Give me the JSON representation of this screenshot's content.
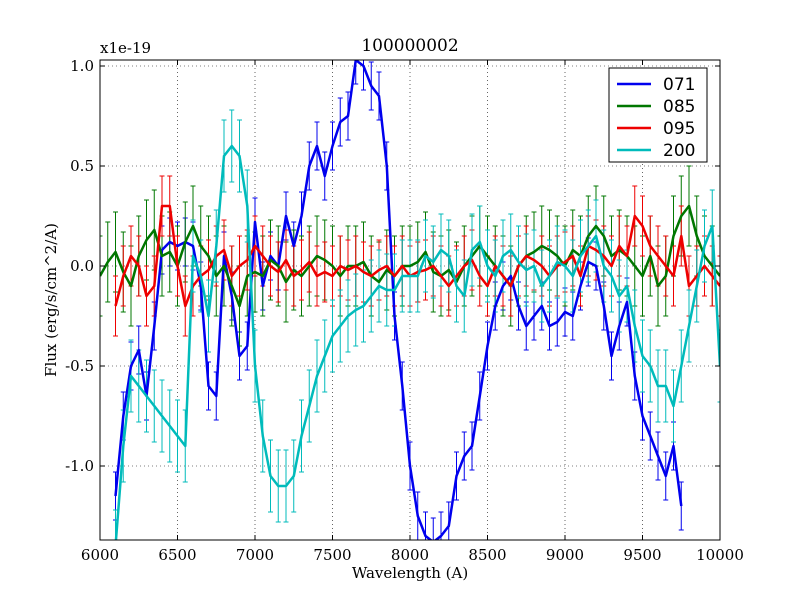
{
  "chart_data": {
    "type": "line",
    "title": "100000002",
    "xlabel": "Wavelength (A)",
    "ylabel": "Flux (erg/s/cm^2/A)",
    "y_offset_text": "x1e-19",
    "xlim": [
      6000,
      10000
    ],
    "ylim": [
      -1.37,
      1.03
    ],
    "xticks": [
      6000,
      6500,
      7000,
      7500,
      8000,
      8500,
      9000,
      9500,
      10000
    ],
    "xtick_labels": [
      "6000",
      "6500",
      "7000",
      "7500",
      "8000",
      "8500",
      "9000",
      "9500",
      "10000"
    ],
    "yticks": [
      -1.0,
      -0.5,
      0.0,
      0.5,
      1.0
    ],
    "ytick_labels": [
      "-1.0",
      "-0.5",
      "0.0",
      "0.5",
      "1.0"
    ],
    "grid": true,
    "legend_position": "top-right",
    "series": [
      {
        "name": "071",
        "color": "#0000ee",
        "err": 0.12,
        "x": [
          6100,
          6150,
          6200,
          6250,
          6300,
          6350,
          6400,
          6450,
          6500,
          6550,
          6600,
          6650,
          6700,
          6750,
          6800,
          6850,
          6900,
          6950,
          7000,
          7050,
          7100,
          7150,
          7200,
          7250,
          7300,
          7350,
          7400,
          7450,
          7500,
          7550,
          7600,
          7650,
          7700,
          7750,
          7800,
          7850,
          7900,
          7950,
          8000,
          8050,
          8100,
          8150,
          8200,
          8250,
          8300,
          8350,
          8400,
          8450,
          8500,
          8550,
          8600,
          8650,
          8700,
          8750,
          8800,
          8850,
          8900,
          8950,
          9000,
          9050,
          9100,
          9150,
          9200,
          9250,
          9300,
          9350,
          9400,
          9450,
          9500,
          9550,
          9600,
          9650,
          9700,
          9750
        ],
        "y": [
          -1.15,
          -0.75,
          -0.5,
          -0.42,
          -0.65,
          -0.3,
          0.08,
          0.12,
          0.1,
          0.12,
          0.1,
          -0.1,
          -0.6,
          -0.65,
          0.05,
          -0.15,
          -0.45,
          -0.4,
          0.22,
          -0.1,
          0.05,
          0.0,
          0.25,
          0.1,
          0.25,
          0.5,
          0.6,
          0.45,
          0.6,
          0.72,
          0.75,
          1.03,
          1.0,
          0.9,
          0.85,
          0.5,
          -0.25,
          -0.6,
          -1.0,
          -1.25,
          -1.35,
          -1.38,
          -1.35,
          -1.3,
          -1.05,
          -0.95,
          -0.9,
          -0.65,
          -0.4,
          -0.2,
          -0.1,
          -0.05,
          -0.2,
          -0.3,
          -0.25,
          -0.2,
          -0.3,
          -0.28,
          -0.23,
          -0.25,
          -0.1,
          0.02,
          0.0,
          -0.2,
          -0.45,
          -0.3,
          -0.18,
          -0.55,
          -0.75,
          -0.85,
          -0.95,
          -1.05,
          -0.9,
          -1.2
        ]
      },
      {
        "name": "085",
        "color": "#007700",
        "err": 0.2,
        "x": [
          6000,
          6050,
          6100,
          6150,
          6200,
          6250,
          6300,
          6350,
          6400,
          6450,
          6500,
          6550,
          6600,
          6650,
          6700,
          6750,
          6800,
          6850,
          6900,
          6950,
          7000,
          7050,
          7100,
          7150,
          7200,
          7250,
          7300,
          7350,
          7400,
          7450,
          7500,
          7550,
          7600,
          7650,
          7700,
          7750,
          7800,
          7850,
          7900,
          7950,
          8000,
          8050,
          8100,
          8150,
          8200,
          8250,
          8300,
          8350,
          8400,
          8450,
          8500,
          8550,
          8600,
          8650,
          8700,
          8750,
          8800,
          8850,
          8900,
          8950,
          9000,
          9050,
          9100,
          9150,
          9200,
          9250,
          9300,
          9350,
          9400,
          9450,
          9500,
          9550,
          9600,
          9650,
          9700,
          9750,
          9800,
          9850,
          9900,
          9950,
          10000
        ],
        "y": [
          -0.05,
          0.02,
          0.07,
          -0.03,
          -0.1,
          0.05,
          0.13,
          0.18,
          0.05,
          0.07,
          0.0,
          0.12,
          0.2,
          0.1,
          0.05,
          -0.05,
          0.0,
          -0.1,
          -0.2,
          -0.05,
          -0.03,
          -0.05,
          0.03,
          0.0,
          -0.08,
          -0.02,
          -0.05,
          0.0,
          0.05,
          0.03,
          0.0,
          -0.05,
          0.0,
          0.0,
          0.02,
          -0.05,
          -0.08,
          -0.02,
          -0.05,
          0.0,
          0.0,
          0.02,
          0.07,
          -0.03,
          -0.05,
          -0.02,
          -0.08,
          0.0,
          0.05,
          0.1,
          0.05,
          0.0,
          -0.05,
          -0.1,
          0.0,
          0.05,
          0.07,
          0.1,
          0.08,
          0.05,
          0.0,
          0.08,
          0.05,
          0.15,
          0.2,
          0.15,
          0.05,
          0.08,
          0.05,
          0.0,
          -0.05,
          0.05,
          -0.1,
          -0.05,
          0.15,
          0.25,
          0.3,
          0.15,
          0.05,
          0.0,
          -0.05
        ]
      },
      {
        "name": "095",
        "color": "#ee0000",
        "err": 0.15,
        "x": [
          6100,
          6150,
          6200,
          6250,
          6300,
          6350,
          6400,
          6450,
          6500,
          6550,
          6600,
          6650,
          6700,
          6750,
          6800,
          6850,
          6900,
          6950,
          7000,
          7050,
          7100,
          7150,
          7200,
          7250,
          7300,
          7350,
          7400,
          7450,
          7500,
          7550,
          7600,
          7650,
          7700,
          7750,
          7800,
          7850,
          7900,
          7950,
          8000,
          8050,
          8100,
          8150,
          8200,
          8250,
          8300,
          8350,
          8400,
          8450,
          8500,
          8550,
          8600,
          8650,
          8700,
          8750,
          8800,
          8850,
          8900,
          8950,
          9000,
          9050,
          9100,
          9150,
          9200,
          9250,
          9300,
          9350,
          9400,
          9450,
          9500,
          9550,
          9600,
          9650,
          9700,
          9750,
          9800,
          9850,
          9900,
          9950,
          10000
        ],
        "y": [
          -0.2,
          -0.05,
          0.05,
          0.0,
          -0.15,
          -0.1,
          0.3,
          0.3,
          0.0,
          -0.2,
          -0.1,
          -0.05,
          -0.02,
          0.05,
          0.08,
          -0.05,
          0.0,
          0.03,
          0.1,
          0.05,
          0.0,
          -0.03,
          0.03,
          -0.05,
          -0.02,
          0.02,
          -0.05,
          -0.03,
          -0.05,
          0.0,
          -0.02,
          0.0,
          -0.03,
          -0.05,
          -0.02,
          0.0,
          -0.05,
          0.0,
          -0.05,
          -0.03,
          -0.02,
          0.0,
          -0.05,
          -0.1,
          -0.05,
          0.0,
          0.03,
          -0.05,
          -0.1,
          0.0,
          -0.05,
          -0.1,
          0.0,
          0.05,
          0.03,
          0.0,
          -0.05,
          0.0,
          0.02,
          0.05,
          -0.05,
          0.1,
          0.08,
          0.05,
          0.0,
          0.1,
          0.05,
          0.25,
          0.2,
          0.1,
          0.05,
          0.0,
          -0.05,
          0.15,
          -0.1,
          -0.05,
          0.0,
          -0.05,
          -0.1
        ]
      },
      {
        "name": "200",
        "color": "#00bbbb",
        "err": 0.18,
        "x": [
          6100,
          6150,
          6200,
          6250,
          6300,
          6350,
          6400,
          6450,
          6500,
          6550,
          6600,
          6650,
          6700,
          6750,
          6800,
          6850,
          6900,
          6950,
          7000,
          7050,
          7100,
          7150,
          7200,
          7250,
          7300,
          7350,
          7400,
          7450,
          7500,
          7550,
          7600,
          7650,
          7700,
          7750,
          7800,
          7850,
          7900,
          7950,
          8000,
          8050,
          8100,
          8150,
          8200,
          8250,
          8300,
          8350,
          8400,
          8450,
          8500,
          8550,
          8600,
          8650,
          8700,
          8750,
          8800,
          8850,
          8900,
          8950,
          9000,
          9050,
          9100,
          9150,
          9200,
          9250,
          9300,
          9350,
          9400,
          9450,
          9500,
          9550,
          9600,
          9650,
          9700,
          9750,
          9800,
          9850,
          9900,
          9950,
          10000
        ],
        "y": [
          -1.4,
          -0.9,
          -0.55,
          -0.6,
          -0.65,
          -0.7,
          -0.75,
          -0.8,
          -0.85,
          -0.9,
          0.05,
          -0.05,
          -0.25,
          0.1,
          0.55,
          0.6,
          0.55,
          0.3,
          -0.5,
          -0.85,
          -1.05,
          -1.1,
          -1.1,
          -1.05,
          -0.85,
          -0.7,
          -0.55,
          -0.45,
          -0.35,
          -0.3,
          -0.25,
          -0.22,
          -0.2,
          -0.15,
          -0.1,
          -0.12,
          -0.12,
          -0.05,
          -0.05,
          -0.05,
          0.05,
          0.02,
          0.08,
          0.05,
          -0.1,
          -0.15,
          0.08,
          0.12,
          0.0,
          -0.05,
          0.05,
          0.08,
          0.02,
          -0.02,
          0.0,
          -0.1,
          -0.05,
          0.02,
          0.0,
          -0.05,
          0.05,
          0.1,
          0.15,
          0.0,
          -0.05,
          -0.15,
          -0.1,
          -0.3,
          -0.45,
          -0.5,
          -0.6,
          -0.6,
          -0.7,
          -0.5,
          -0.3,
          -0.1,
          0.1,
          0.2,
          -0.5
        ]
      }
    ]
  }
}
